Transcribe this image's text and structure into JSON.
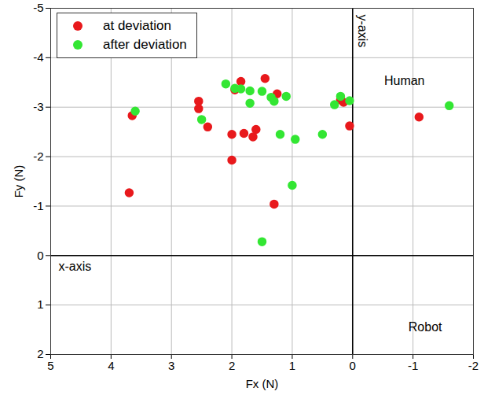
{
  "chart_data": {
    "type": "scatter",
    "x_label": "Fx (N)",
    "y_label": "Fy (N)",
    "xlim": [
      5,
      -2
    ],
    "xticks": [
      5,
      4,
      3,
      2,
      1,
      0,
      -1,
      -2
    ],
    "ylim": [
      2,
      -5
    ],
    "yticks": [
      -5,
      -4,
      -3,
      -2,
      -1,
      0,
      1,
      2
    ],
    "grid": true,
    "legend": "top-left",
    "marker": "circle",
    "annotations": [
      "x-axis",
      "y-axis",
      "Human",
      "Robot"
    ],
    "series": [
      {
        "name": "at deviation",
        "color": "#e8191c",
        "x": [
          3.7,
          3.65,
          2.55,
          2.55,
          2.4,
          2.0,
          1.95,
          1.85,
          1.8,
          1.65,
          1.6,
          1.45,
          1.25,
          1.3,
          2.0,
          0.2,
          0.15,
          0.05,
          -1.1
        ],
        "values": [
          -1.27,
          -2.83,
          -3.12,
          -2.97,
          -2.6,
          -2.45,
          -3.35,
          -3.52,
          -2.47,
          -2.4,
          -2.55,
          -3.58,
          -3.27,
          -1.04,
          -1.93,
          -3.15,
          -3.1,
          -2.62,
          -2.8
        ]
      },
      {
        "name": "after deviation",
        "color": "#33e633",
        "x": [
          3.6,
          2.5,
          2.1,
          1.95,
          1.85,
          1.7,
          1.7,
          1.5,
          1.35,
          1.3,
          1.1,
          1.2,
          0.95,
          1.0,
          1.5,
          0.5,
          0.3,
          0.2,
          0.05,
          -1.6
        ],
        "values": [
          -2.92,
          -2.75,
          -3.47,
          -3.38,
          -3.37,
          -3.33,
          -3.08,
          -3.32,
          -3.2,
          -3.12,
          -3.22,
          -2.45,
          -2.35,
          -1.42,
          -0.28,
          -2.45,
          -3.05,
          -3.22,
          -3.13,
          -3.03
        ]
      }
    ]
  }
}
